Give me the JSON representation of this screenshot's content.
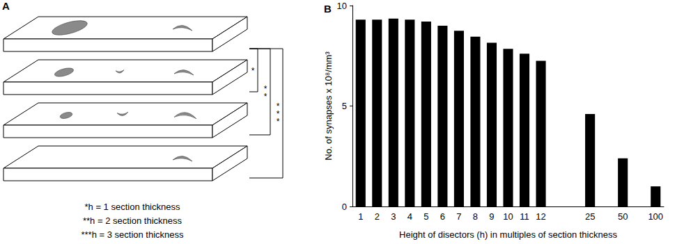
{
  "diagram": {
    "label": "A",
    "brackets": [
      "*",
      "**",
      "***"
    ],
    "notes": [
      "*h = 1 section thickness",
      "**h = 2 section thickness",
      "***h = 3 section thickness"
    ]
  },
  "chart_data": {
    "type": "bar",
    "title": "B",
    "categories": [
      "1",
      "2",
      "3",
      "4",
      "5",
      "6",
      "7",
      "8",
      "9",
      "10",
      "11",
      "12",
      null,
      null,
      "25",
      null,
      "50",
      null,
      "100"
    ],
    "values": [
      9.3,
      9.3,
      9.35,
      9.3,
      9.2,
      9.0,
      8.75,
      8.45,
      8.15,
      7.85,
      7.6,
      7.25,
      null,
      null,
      4.6,
      null,
      2.4,
      null,
      1.0
    ],
    "color": "#000000",
    "x_label": "Height of disectors (h) in multiples of section thickness",
    "y_label": "No. of synapses x 10⁸/mm³",
    "ylim": [
      0,
      10
    ],
    "yticks": [
      0,
      5,
      10
    ],
    "grid": false
  }
}
